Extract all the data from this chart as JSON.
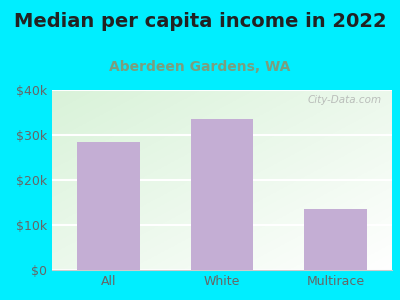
{
  "title": "Median per capita income in 2022",
  "subtitle": "Aberdeen Gardens, WA",
  "categories": [
    "All",
    "White",
    "Multirace"
  ],
  "values": [
    28500,
    33500,
    13500
  ],
  "bar_color": "#c4aed4",
  "title_fontsize": 14,
  "subtitle_fontsize": 10,
  "title_color": "#222222",
  "subtitle_color": "#7a9e7e",
  "tick_label_fontsize": 9,
  "axis_label_color": "#666666",
  "background_outer": "#00eeff",
  "plot_bg_color_left": "#e8f5e2",
  "plot_bg_color_right": "#f8fff4",
  "ylim": [
    0,
    40000
  ],
  "yticks": [
    0,
    10000,
    20000,
    30000,
    40000
  ],
  "ytick_labels": [
    "$0",
    "$10k",
    "$20k",
    "$30k",
    "$40k"
  ],
  "watermark": "City-Data.com",
  "grid_color": "#ffffff",
  "bottom_spine_color": "#cccccc"
}
